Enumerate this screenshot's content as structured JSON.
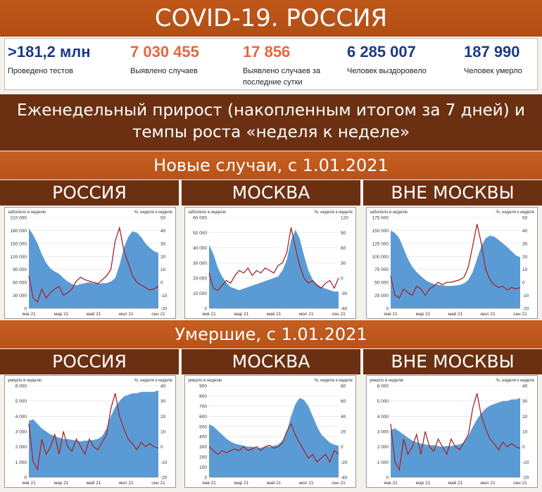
{
  "header": {
    "title": "COVID-19. РОССИЯ"
  },
  "stats": [
    {
      "value": ">181,2 млн",
      "label": "Проведено тестов",
      "color": "#1a3a8a"
    },
    {
      "value": "7 030 455",
      "label": "Выявлено случаев",
      "color": "#e8663d"
    },
    {
      "value": "17 856",
      "label": "Выявлено случаев за последние сутки",
      "color": "#e8663d"
    },
    {
      "value": "6 285 007",
      "label": "Человек выздоровело",
      "color": "#1a3a8a"
    },
    {
      "value": "187 990",
      "label": "Человек умерло",
      "color": "#1a3a8a"
    }
  ],
  "section": {
    "subtitle": "Еженедельный прирост (накопленным итогом за 7 дней) и темпы роста «неделя к неделе»",
    "cases_title": "Новые случаи, с 1.01.2021",
    "deaths_title": "Умершие, с 1.01.2021"
  },
  "columns": [
    "РОССИЯ",
    "МОСКВА",
    "ВНЕ МОСКВЫ"
  ],
  "colors": {
    "area": "#5b9bd5",
    "line": "#a3262a",
    "header_dark": "#6b3011",
    "header_orange": "#c0571a"
  },
  "chart_data": [
    {
      "type": "area",
      "region": "РОССИЯ",
      "metric": "cases",
      "ylabel_left": "заболело в неделю",
      "ylabel_right": "%, неделя к неделе",
      "x": [
        "янв 21",
        "мар 21",
        "май 21",
        "июл 21",
        "сен 21"
      ],
      "yticks_left": [
        "0",
        "30 000",
        "60 000",
        "90 000",
        "120 000",
        "150 000",
        "180 000",
        "210 000"
      ],
      "ylim_left": [
        0,
        210000
      ],
      "yticks_right": [
        "-20",
        "-10",
        "0",
        "10",
        "20",
        "30",
        "40",
        "50"
      ],
      "ylim_right": [
        -20,
        50
      ],
      "series_area": [
        185000,
        170000,
        150000,
        125000,
        105000,
        92000,
        85000,
        80000,
        70000,
        62000,
        56000,
        53000,
        56000,
        58000,
        60000,
        58000,
        57000,
        58000,
        58000,
        62000,
        70000,
        100000,
        140000,
        165000,
        178000,
        175000,
        165000,
        150000,
        140000,
        132000,
        128000
      ],
      "series_line": [
        5,
        -12,
        -15,
        -5,
        -12,
        -8,
        -5,
        -3,
        -10,
        -8,
        -5,
        1,
        4,
        2,
        1,
        0,
        -1,
        2,
        5,
        10,
        32,
        42,
        25,
        15,
        5,
        0,
        -2,
        -4,
        -6,
        -5,
        -3
      ]
    },
    {
      "type": "area",
      "region": "МОСКВА",
      "metric": "cases",
      "ylabel_left": "заболело в неделю",
      "ylabel_right": "%, неделя к неделе",
      "x": [
        "янв 21",
        "мар 21",
        "май 21",
        "июл 21",
        "сен 21"
      ],
      "yticks_left": [
        "0",
        "10 000",
        "20 000",
        "30 000",
        "40 000",
        "50 000",
        "60 000"
      ],
      "ylim_left": [
        0,
        60000
      ],
      "yticks_right": [
        "-60",
        "-30",
        "0",
        "30",
        "60",
        "90",
        "120"
      ],
      "ylim_right": [
        -60,
        120
      ],
      "series_area": [
        42000,
        36000,
        27000,
        21000,
        17000,
        14000,
        13000,
        12000,
        13000,
        14000,
        15000,
        16000,
        17000,
        18000,
        19000,
        20000,
        21000,
        25000,
        32000,
        45000,
        52000,
        46000,
        35000,
        25000,
        19000,
        16000,
        14000,
        13000,
        12000,
        11000,
        11000
      ],
      "series_line": [
        10,
        -20,
        -25,
        -15,
        -5,
        -10,
        5,
        15,
        10,
        20,
        5,
        15,
        10,
        20,
        15,
        10,
        25,
        30,
        50,
        100,
        60,
        25,
        0,
        -10,
        -5,
        -15,
        -20,
        -10,
        -5,
        -20,
        0
      ]
    },
    {
      "type": "area",
      "region": "ВНЕ МОСКВЫ",
      "metric": "cases",
      "ylabel_left": "заболело в неделю",
      "ylabel_right": "%, неделя к неделе",
      "x": [
        "янв 21",
        "мар 21",
        "май 21",
        "июл 21",
        "сен 21"
      ],
      "yticks_left": [
        "0",
        "25 000",
        "50 000",
        "75 000",
        "100 000",
        "125 000",
        "150 000",
        "175 000"
      ],
      "ylim_left": [
        0,
        175000
      ],
      "yticks_right": [
        "-20",
        "-10",
        "0",
        "10",
        "20",
        "30",
        "40",
        "50"
      ],
      "ylim_right": [
        -20,
        50
      ],
      "series_area": [
        150000,
        145000,
        135000,
        115000,
        95000,
        80000,
        70000,
        62000,
        55000,
        50000,
        47000,
        45000,
        44000,
        43000,
        43000,
        44000,
        45000,
        48000,
        55000,
        70000,
        95000,
        120000,
        135000,
        140000,
        138000,
        132000,
        125000,
        118000,
        110000,
        102000,
        98000
      ],
      "series_line": [
        5,
        -10,
        -12,
        -5,
        -8,
        -10,
        -3,
        -5,
        -10,
        -5,
        -3,
        0,
        -2,
        0,
        0,
        1,
        2,
        4,
        12,
        28,
        45,
        30,
        10,
        2,
        -2,
        -4,
        -3,
        -6,
        -4,
        -5,
        -4
      ]
    },
    {
      "type": "area",
      "region": "РОССИЯ",
      "metric": "deaths",
      "ylabel_left": "умерло в неделю",
      "ylabel_right": "%, неделя к неделе",
      "x": [
        "янв 21",
        "мар 21",
        "май 21",
        "июл 21",
        "сен 21"
      ],
      "yticks_left": [
        "0",
        "1 000",
        "2 000",
        "3 000",
        "4 000",
        "5 000",
        "6 000"
      ],
      "ylim_left": [
        0,
        6000
      ],
      "yticks_right": [
        "-20",
        "-10",
        "0",
        "10",
        "20",
        "30",
        "40"
      ],
      "ylim_right": [
        -20,
        40
      ],
      "series_area": [
        3700,
        3800,
        3500,
        3200,
        3000,
        2800,
        2700,
        2600,
        2500,
        2500,
        2450,
        2400,
        2350,
        2400,
        2400,
        2450,
        2500,
        2700,
        3200,
        4000,
        4600,
        5000,
        5300,
        5400,
        5500,
        5500,
        5600,
        5600,
        5600,
        5600,
        5700
      ],
      "series_line": [
        15,
        -10,
        -15,
        5,
        -5,
        0,
        8,
        -5,
        10,
        0,
        -3,
        5,
        0,
        -5,
        5,
        0,
        -2,
        3,
        8,
        25,
        35,
        20,
        12,
        5,
        2,
        -2,
        3,
        0,
        2,
        0,
        -1
      ]
    },
    {
      "type": "area",
      "region": "МОСКВА",
      "metric": "deaths",
      "ylabel_left": "умерло в неделю",
      "ylabel_right": "%, неделя к неделе",
      "x": [
        "янв 21",
        "мар 21",
        "май 21",
        "июл 21",
        "сен 21"
      ],
      "yticks_left": [
        "0",
        "100",
        "200",
        "300",
        "400",
        "500",
        "600",
        "700",
        "800",
        "900"
      ],
      "ylim_left": [
        0,
        900
      ],
      "yticks_right": [
        "-40",
        "-20",
        "0",
        "20",
        "40",
        "60",
        "80"
      ],
      "ylim_right": [
        -40,
        80
      ],
      "series_area": [
        520,
        500,
        460,
        420,
        380,
        350,
        330,
        320,
        310,
        300,
        300,
        290,
        290,
        300,
        300,
        310,
        320,
        360,
        450,
        600,
        720,
        780,
        760,
        700,
        600,
        500,
        420,
        380,
        340,
        320,
        310
      ],
      "series_line": [
        0,
        -5,
        -10,
        -5,
        -8,
        -5,
        -3,
        -5,
        0,
        -5,
        -3,
        0,
        -5,
        0,
        2,
        -2,
        0,
        5,
        20,
        30,
        15,
        5,
        -5,
        -15,
        -10,
        -20,
        -15,
        -10,
        -20,
        -5,
        -10
      ]
    },
    {
      "type": "area",
      "region": "ВНЕ МОСКВЫ",
      "metric": "deaths",
      "ylabel_left": "умерло в неделю",
      "ylabel_right": "%, неделя к неделе",
      "x": [
        "янв 21",
        "мар 21",
        "май 21",
        "июл 21",
        "сен 21"
      ],
      "yticks_left": [
        "0",
        "1 000",
        "2 000",
        "3 000",
        "4 000",
        "5 000",
        "6 000"
      ],
      "ylim_left": [
        0,
        6000
      ],
      "yticks_right": [
        "-20",
        "-10",
        "0",
        "10",
        "20",
        "30",
        "40"
      ],
      "ylim_right": [
        -20,
        40
      ],
      "series_area": [
        3100,
        3200,
        3000,
        2800,
        2600,
        2400,
        2300,
        2200,
        2150,
        2100,
        2100,
        2050,
        2000,
        2050,
        2050,
        2100,
        2150,
        2300,
        2700,
        3300,
        3800,
        4200,
        4500,
        4700,
        4800,
        4900,
        5000,
        5000,
        5100,
        5100,
        5200
      ],
      "series_line": [
        15,
        -10,
        -15,
        5,
        -5,
        0,
        8,
        -5,
        10,
        0,
        -3,
        5,
        0,
        -5,
        5,
        0,
        -2,
        3,
        8,
        25,
        35,
        20,
        12,
        5,
        2,
        -2,
        3,
        0,
        2,
        0,
        -1
      ]
    }
  ]
}
